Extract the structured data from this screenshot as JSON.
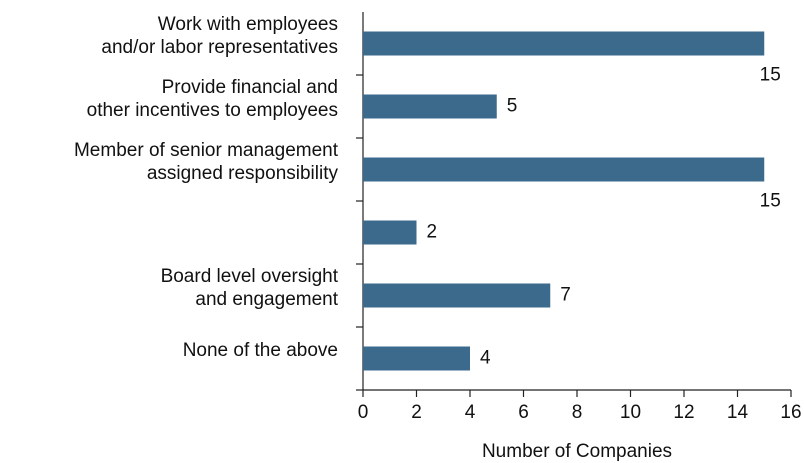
{
  "chart_data": {
    "type": "bar",
    "orientation": "horizontal",
    "categories": [
      "Work with employees\nand/or labor representatives",
      "Provide financial and\nother incentives to employees",
      "Member of senior management\nassigned responsibility",
      null,
      "Board level oversight\nand engagement",
      "None of the above"
    ],
    "values": [
      15,
      5,
      15,
      2,
      7,
      4
    ],
    "color": "#3b6a8c",
    "xlabel": "Number of Companies",
    "xlim": [
      0,
      16
    ],
    "xticks": [
      0,
      2,
      4,
      6,
      8,
      10,
      12,
      14,
      16
    ],
    "grid": false
  }
}
